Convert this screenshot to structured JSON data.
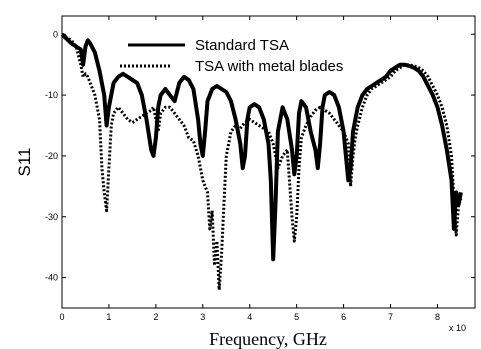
{
  "chart_data": {
    "type": "line",
    "xlabel": "Frequency, GHz",
    "ylabel": "S11",
    "x_exponent_label": "x 10",
    "xlim": [
      0,
      8.8
    ],
    "ylim": [
      -45,
      3
    ],
    "x_ticks": [
      0,
      1,
      2,
      3,
      4,
      5,
      6,
      7,
      8
    ],
    "y_ticks": [
      0,
      -10,
      -20,
      -30,
      -40
    ],
    "legend_position": "top-center",
    "series": [
      {
        "name": "Standard TSA",
        "style": "solid",
        "color": "#000000",
        "x": [
          0.0,
          0.2,
          0.4,
          0.45,
          0.5,
          0.55,
          0.6,
          0.7,
          0.8,
          0.9,
          0.95,
          1.0,
          1.1,
          1.2,
          1.3,
          1.4,
          1.5,
          1.6,
          1.7,
          1.8,
          1.9,
          1.95,
          2.0,
          2.05,
          2.1,
          2.2,
          2.3,
          2.4,
          2.5,
          2.6,
          2.7,
          2.8,
          2.9,
          2.95,
          3.0,
          3.05,
          3.1,
          3.2,
          3.3,
          3.4,
          3.5,
          3.6,
          3.7,
          3.8,
          3.85,
          3.9,
          3.95,
          4.0,
          4.1,
          4.2,
          4.3,
          4.4,
          4.45,
          4.5,
          4.55,
          4.6,
          4.7,
          4.8,
          4.9,
          4.95,
          5.0,
          5.05,
          5.1,
          5.2,
          5.3,
          5.4,
          5.45,
          5.5,
          5.55,
          5.6,
          5.7,
          5.8,
          5.9,
          6.0,
          6.05,
          6.1,
          6.15,
          6.2,
          6.3,
          6.4,
          6.5,
          6.6,
          6.7,
          6.8,
          6.9,
          7.0,
          7.1,
          7.2,
          7.3,
          7.4,
          7.5,
          7.6,
          7.7,
          7.8,
          7.9,
          8.0,
          8.1,
          8.2,
          8.3,
          8.35,
          8.4,
          8.45,
          8.5
        ],
        "y": [
          0,
          -1.5,
          -2.5,
          -5,
          -2,
          -1,
          -1.5,
          -3,
          -6,
          -10,
          -15,
          -12,
          -8,
          -7,
          -6.5,
          -7,
          -7.5,
          -8,
          -10,
          -14,
          -19,
          -20,
          -17,
          -12,
          -10,
          -9,
          -10,
          -11,
          -8,
          -7,
          -7.5,
          -9,
          -14,
          -18,
          -20,
          -16,
          -11,
          -9,
          -8.5,
          -9,
          -9.5,
          -11,
          -14,
          -18,
          -22,
          -20,
          -14,
          -12,
          -11.5,
          -12,
          -14,
          -18,
          -24,
          -37,
          -28,
          -16,
          -12,
          -14,
          -19,
          -23,
          -20,
          -13,
          -11,
          -12,
          -16,
          -19,
          -22,
          -18,
          -12,
          -10,
          -9.5,
          -10,
          -12,
          -16,
          -20,
          -24,
          -22,
          -16,
          -12,
          -10,
          -9,
          -8.5,
          -8,
          -7.5,
          -7,
          -6,
          -5.5,
          -5,
          -5,
          -5.2,
          -5.5,
          -6,
          -7,
          -8.5,
          -10,
          -12,
          -15,
          -19,
          -24,
          -32,
          -26,
          -28,
          -26
        ]
      },
      {
        "name": "TSA with metal blades",
        "style": "dotted",
        "color": "#000000",
        "x": [
          0.0,
          0.2,
          0.3,
          0.4,
          0.45,
          0.5,
          0.55,
          0.6,
          0.7,
          0.8,
          0.85,
          0.9,
          0.95,
          1.0,
          1.05,
          1.1,
          1.2,
          1.3,
          1.4,
          1.5,
          1.6,
          1.7,
          1.8,
          1.9,
          1.95,
          2.0,
          2.05,
          2.1,
          2.2,
          2.3,
          2.4,
          2.5,
          2.6,
          2.7,
          2.8,
          2.9,
          3.0,
          3.1,
          3.15,
          3.2,
          3.25,
          3.3,
          3.35,
          3.4,
          3.45,
          3.5,
          3.6,
          3.7,
          3.8,
          3.9,
          4.0,
          4.1,
          4.2,
          4.3,
          4.4,
          4.5,
          4.6,
          4.7,
          4.8,
          4.9,
          4.95,
          5.0,
          5.05,
          5.1,
          5.2,
          5.3,
          5.4,
          5.5,
          5.6,
          5.7,
          5.8,
          5.9,
          6.0,
          6.1,
          6.15,
          6.2,
          6.25,
          6.3,
          6.4,
          6.5,
          6.6,
          6.7,
          6.8,
          6.9,
          7.0,
          7.1,
          7.2,
          7.3,
          7.4,
          7.5,
          7.6,
          7.7,
          7.8,
          7.9,
          8.0,
          8.1,
          8.2,
          8.3,
          8.35,
          8.4,
          8.45,
          8.5
        ],
        "y": [
          0,
          -1,
          -2,
          -5,
          -7,
          -6.5,
          -7,
          -8,
          -10,
          -14,
          -22,
          -26,
          -29,
          -22,
          -15,
          -13,
          -12,
          -13,
          -14,
          -14.5,
          -14,
          -13.5,
          -13,
          -12.5,
          -12,
          -14,
          -16,
          -13,
          -12,
          -12,
          -13,
          -14,
          -15,
          -17,
          -17.5,
          -20,
          -24,
          -26,
          -32,
          -29,
          -38,
          -34,
          -42,
          -36,
          -28,
          -20,
          -16,
          -15,
          -15.5,
          -14.5,
          -14,
          -14.5,
          -15,
          -15.5,
          -16,
          -18,
          -22,
          -20,
          -19,
          -30,
          -34,
          -30,
          -22,
          -17,
          -15,
          -13.5,
          -12.5,
          -12,
          -12.5,
          -13,
          -14,
          -15,
          -16,
          -18,
          -25,
          -20,
          -17,
          -15,
          -12,
          -10,
          -9,
          -8.5,
          -8,
          -7.5,
          -7,
          -6,
          -5.5,
          -5,
          -5,
          -5.2,
          -5.5,
          -6,
          -7,
          -8.5,
          -10,
          -12,
          -15,
          -20,
          -27,
          -33,
          -28,
          -27
        ]
      }
    ]
  }
}
